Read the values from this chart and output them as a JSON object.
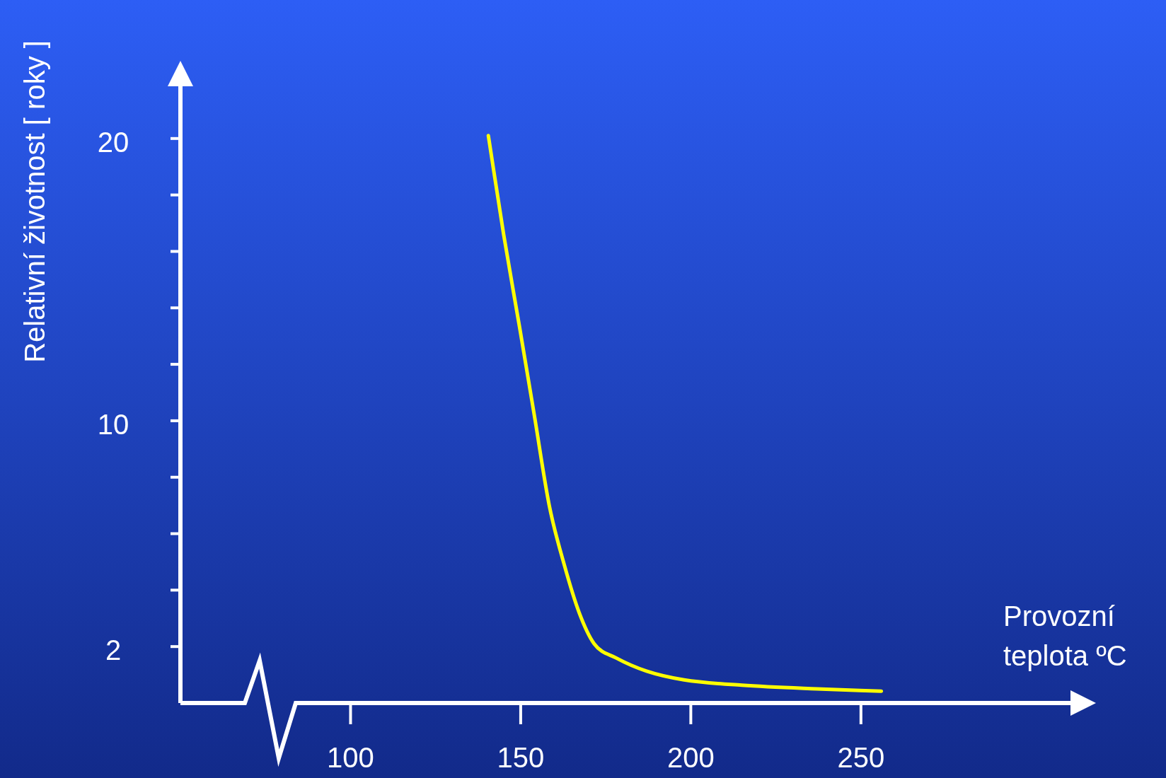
{
  "chart_data": {
    "type": "line",
    "xlabel": "Provozní teplota ºC",
    "ylabel": "Relativní životnost [ roky ]",
    "x": [
      140.5,
      145,
      149.7,
      154,
      158.4,
      162.8,
      167.2,
      171.6,
      178,
      187,
      198,
      215,
      237,
      256
    ],
    "series": [
      {
        "color": "#ffff00",
        "values": [
          20.1,
          16.6,
          13.3,
          10.2,
          7.0,
          4.9,
          3.2,
          2.1,
          1.6,
          1.13,
          0.82,
          0.63,
          0.5,
          0.42
        ]
      }
    ],
    "xlim": [
      50,
      312
    ],
    "ylim": [
      0,
      21.9
    ],
    "xticks": [
      100,
      150,
      200,
      250
    ],
    "yticks": [
      {
        "value": 2,
        "label": "2"
      },
      {
        "value": 4,
        "label": null
      },
      {
        "value": 6,
        "label": null
      },
      {
        "value": 8,
        "label": null
      },
      {
        "value": 10,
        "label": "10"
      },
      {
        "value": 12,
        "label": null
      },
      {
        "value": 14,
        "label": null
      },
      {
        "value": 16,
        "label": null
      },
      {
        "value": 18,
        "label": null
      },
      {
        "value": 20,
        "label": "20"
      }
    ],
    "grid": false,
    "legend": false,
    "marker": "none",
    "line_style": "solid"
  }
}
